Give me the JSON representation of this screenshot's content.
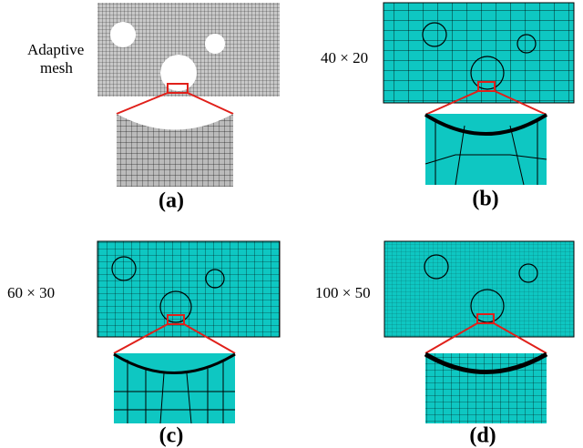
{
  "panels": [
    {
      "caption": [
        "Adaptive",
        "mesh"
      ],
      "label": "(a)"
    },
    {
      "caption": [
        "40 × 20"
      ],
      "label": "(b)"
    },
    {
      "caption": [
        "60 × 30"
      ],
      "label": "(c)"
    },
    {
      "caption": [
        "100 × 50"
      ],
      "label": "(d)"
    }
  ]
}
